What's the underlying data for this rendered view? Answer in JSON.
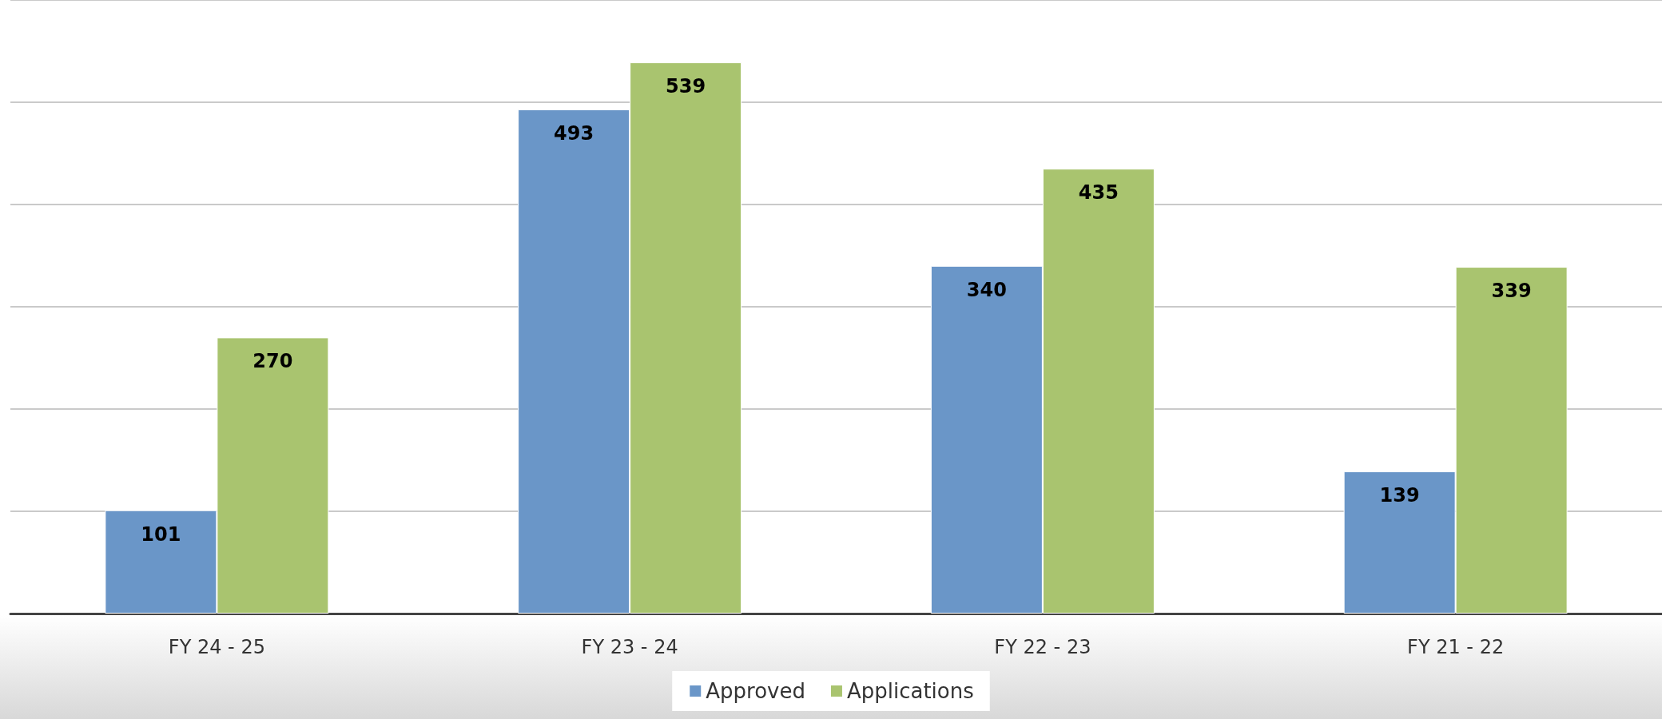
{
  "chart_data": {
    "type": "bar",
    "categories": [
      "FY 24 - 25",
      "FY 23 - 24",
      "FY 22 - 23",
      "FY 21 - 22"
    ],
    "series": [
      {
        "name": "Approved",
        "color": "#6a96c8",
        "values": [
          101,
          493,
          340,
          139
        ]
      },
      {
        "name": "Applications",
        "color": "#a9c46f",
        "values": [
          270,
          539,
          435,
          339
        ]
      }
    ],
    "ylim": [
      0,
      600
    ],
    "yticks": [
      {
        "value": 0,
        "label": null
      },
      {
        "value": 100,
        "label": null
      },
      {
        "value": 200,
        "label": null
      },
      {
        "value": 300,
        "label": null
      },
      {
        "value": 400,
        "label": null
      },
      {
        "value": 500,
        "label": null
      },
      {
        "value": 600,
        "label": null
      }
    ],
    "grid": "y",
    "legend": "bottom",
    "tick_labels": "x",
    "data_labels": true
  }
}
